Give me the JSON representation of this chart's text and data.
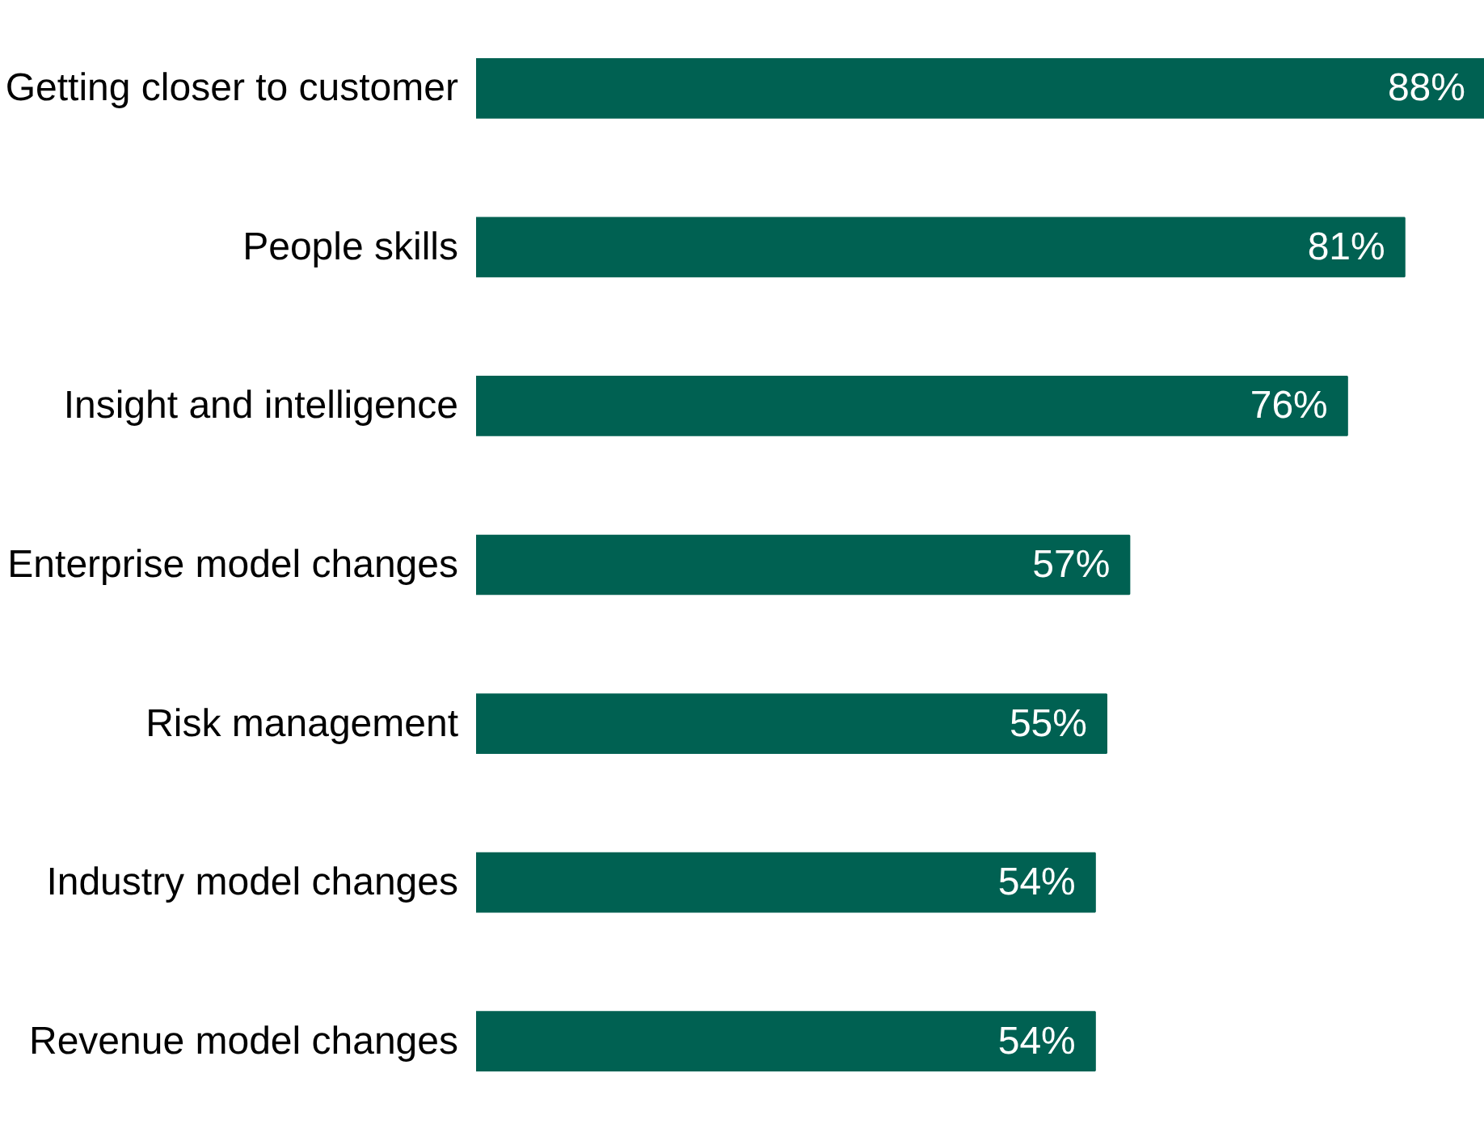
{
  "chart_data": {
    "type": "bar",
    "orientation": "horizontal",
    "value_labels": [
      "88%",
      "81%",
      "76%",
      "57%",
      "55%",
      "54%",
      "54%"
    ],
    "categories": [
      "Getting closer to customer",
      "People skills",
      "Insight and intelligence",
      "Enterprise model changes",
      "Risk management",
      "Industry model changes",
      "Revenue model changes"
    ],
    "values": [
      88,
      81,
      76,
      57,
      55,
      54,
      54
    ],
    "color": "#006152"
  }
}
